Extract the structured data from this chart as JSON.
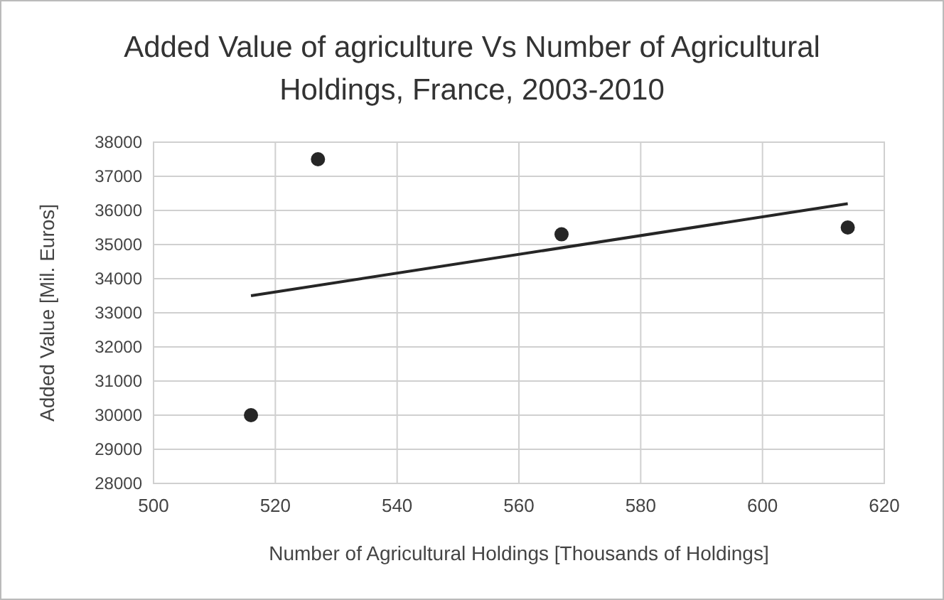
{
  "chart_data": {
    "type": "scatter",
    "title": "Added Value of agriculture Vs Number of Agricultural Holdings, France, 2003-2010",
    "xlabel": "Number of Agricultural Holdings [Thousands of Holdings]",
    "ylabel": "Added Value [Mil. Euros]",
    "series": [
      {
        "color": "#262626",
        "x": [
          516,
          527,
          567,
          614
        ],
        "values": [
          30000,
          37500,
          35300,
          35500
        ],
        "marker": "circle"
      },
      {
        "type": "line",
        "color": "#262626",
        "x": [
          516,
          614
        ],
        "values": [
          33500,
          36200
        ],
        "marker": "none"
      }
    ],
    "xlim": [
      500,
      620
    ],
    "xticks": [
      500,
      520,
      540,
      560,
      580,
      600,
      620
    ],
    "ylim": [
      28000,
      38000
    ],
    "yticks": [
      28000,
      29000,
      30000,
      31000,
      32000,
      33000,
      34000,
      35000,
      36000,
      37000,
      38000
    ],
    "grid": true
  }
}
